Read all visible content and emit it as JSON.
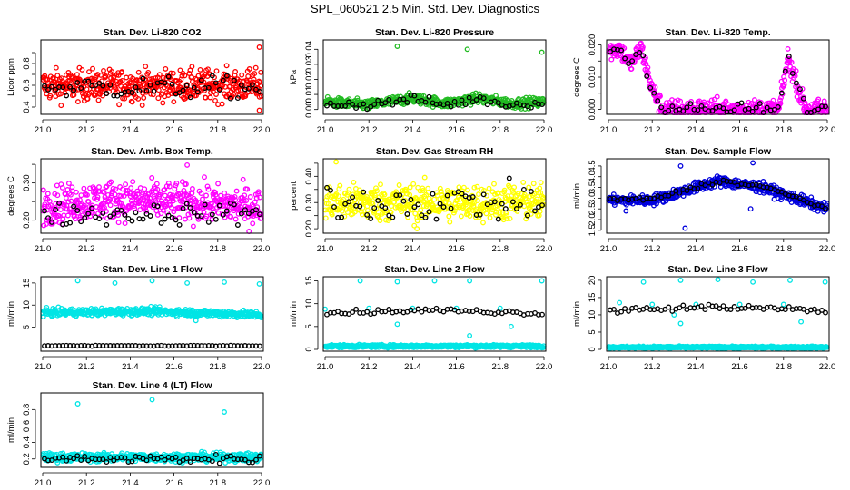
{
  "title": "SPL_060521  2.5 Min. Std. Dev. Diagnostics",
  "x_tick_labels": [
    "21.0",
    "21.2",
    "21.4",
    "21.6",
    "21.8",
    "22.0"
  ],
  "colors": {
    "red": "#ff0000",
    "green": "#22bb22",
    "magenta": "#ff00ff",
    "yellow": "#ffff00",
    "blue": "#0000dd",
    "cyan": "#00e5e5",
    "black": "#000000"
  },
  "chart_data": [
    {
      "type": "scatter",
      "title": "Stan. Dev. Li-820 CO2",
      "ylabel": "Licor ppm",
      "color": "red",
      "xlim": [
        21.0,
        22.0
      ],
      "ylim": [
        0.35,
        1.0
      ],
      "yticks": [
        0.4,
        0.5,
        0.6,
        0.7,
        0.8,
        0.9
      ],
      "yticklabels": [
        "0.4",
        "",
        "0.6",
        "",
        "0.8",
        ""
      ],
      "baseline": [
        [
          21.0,
          0.6
        ],
        [
          22.0,
          0.6
        ]
      ],
      "spread": 0.07,
      "n": 480,
      "black_baseline": [
        [
          21.0,
          0.58
        ],
        [
          22.0,
          0.58
        ]
      ],
      "black_spread": 0.05,
      "extra_points": [
        [
          21.99,
          0.95
        ],
        [
          21.99,
          0.37
        ]
      ]
    },
    {
      "type": "scatter",
      "title": "Stan. Dev. Li-820 Pressure",
      "ylabel": "kPa",
      "color": "green",
      "xlim": [
        21.0,
        22.0
      ],
      "ylim": [
        -0.002,
        0.045
      ],
      "yticks": [
        0.0,
        0.01,
        0.02,
        0.03,
        0.04
      ],
      "yticklabels": [
        "0.00",
        "0.01",
        "0.02",
        "0.03",
        "0.04"
      ],
      "baseline": [
        [
          21.0,
          0.005
        ],
        [
          21.2,
          0.003
        ],
        [
          21.4,
          0.0075
        ],
        [
          21.55,
          0.004
        ],
        [
          21.7,
          0.0075
        ],
        [
          21.85,
          0.004
        ],
        [
          22.0,
          0.005
        ]
      ],
      "spread": 0.0016,
      "n": 480,
      "black_baseline": [
        [
          21.0,
          0.004
        ],
        [
          21.2,
          0.003
        ],
        [
          21.4,
          0.007
        ],
        [
          21.55,
          0.003
        ],
        [
          21.7,
          0.007
        ],
        [
          21.85,
          0.003
        ],
        [
          22.0,
          0.005
        ]
      ],
      "black_spread": 0.0015,
      "extra_points": [
        [
          21.33,
          0.042
        ],
        [
          21.65,
          0.04
        ],
        [
          21.99,
          0.038
        ]
      ]
    },
    {
      "type": "scatter",
      "title": "Stan. Dev. Li-820 Temp.",
      "ylabel": "degrees C",
      "color": "magenta",
      "xlim": [
        21.0,
        22.0
      ],
      "ylim": [
        -0.001,
        0.021
      ],
      "yticks": [
        0.0,
        0.005,
        0.01,
        0.015,
        0.02
      ],
      "yticklabels": [
        "0.000",
        "",
        "0.010",
        "",
        "0.020"
      ],
      "baseline": [
        [
          21.0,
          0.018
        ],
        [
          21.05,
          0.019
        ],
        [
          21.1,
          0.014
        ],
        [
          21.15,
          0.019
        ],
        [
          21.2,
          0.006
        ],
        [
          21.25,
          0.0
        ],
        [
          21.78,
          0.0
        ],
        [
          21.82,
          0.016
        ],
        [
          21.88,
          0.004
        ],
        [
          21.9,
          0.0
        ],
        [
          22.0,
          0.0
        ]
      ],
      "spread": 0.0015,
      "n": 480,
      "black_baseline": [
        [
          21.0,
          0.018
        ],
        [
          21.05,
          0.019
        ],
        [
          21.1,
          0.014
        ],
        [
          21.15,
          0.019
        ],
        [
          21.2,
          0.006
        ],
        [
          21.25,
          0.0
        ],
        [
          21.78,
          0.0
        ],
        [
          21.82,
          0.016
        ],
        [
          21.88,
          0.004
        ],
        [
          21.9,
          0.0
        ],
        [
          22.0,
          0.0
        ]
      ],
      "black_spread": 0.001,
      "extra_points": []
    },
    {
      "type": "scatter",
      "title": "Stan. Dev. Amb. Box Temp.",
      "ylabel": "degrees C",
      "color": "magenta",
      "xlim": [
        21.0,
        22.0
      ],
      "ylim": [
        0.17,
        0.36
      ],
      "yticks": [
        0.2,
        0.25,
        0.3,
        0.35
      ],
      "yticklabels": [
        "0.20",
        "",
        "0.30",
        ""
      ],
      "baseline": [
        [
          21.0,
          0.24
        ],
        [
          21.3,
          0.255
        ],
        [
          21.6,
          0.25
        ],
        [
          22.0,
          0.235
        ]
      ],
      "spread": 0.025,
      "n": 480,
      "black_baseline": [
        [
          21.0,
          0.215
        ],
        [
          22.0,
          0.22
        ]
      ],
      "black_spread": 0.015,
      "extra_points": [
        [
          21.66,
          0.348
        ]
      ]
    },
    {
      "type": "scatter",
      "title": "Stan. Dev. Gas Stream RH",
      "ylabel": "percent",
      "color": "yellow",
      "xlim": [
        21.0,
        22.0
      ],
      "ylim": [
        0.19,
        0.46
      ],
      "yticks": [
        0.2,
        0.25,
        0.3,
        0.35,
        0.4,
        0.45
      ],
      "yticklabels": [
        "0.20",
        "",
        "0.30",
        "",
        "0.40",
        ""
      ],
      "baseline": [
        [
          21.0,
          0.3
        ],
        [
          22.0,
          0.3
        ]
      ],
      "spread": 0.035,
      "n": 480,
      "black_baseline": [
        [
          21.0,
          0.3
        ],
        [
          22.0,
          0.3
        ]
      ],
      "black_spread": 0.035,
      "extra_points": [
        [
          21.05,
          0.455
        ],
        [
          21.42,
          0.2
        ]
      ]
    },
    {
      "type": "scatter",
      "title": "Stan. Dev. Sample Flow",
      "ylabel": "ml/min",
      "color": "blue",
      "xlim": [
        21.0,
        22.0
      ],
      "ylim": [
        1.45,
        4.75
      ],
      "yticks": [
        1.5,
        2.0,
        2.5,
        3.0,
        3.5,
        4.0,
        4.5
      ],
      "yticklabels": [
        "1.5",
        "2.0",
        "2.5",
        "3.0",
        "3.5",
        "4.0",
        "4.5"
      ],
      "baseline": [
        [
          21.0,
          2.9
        ],
        [
          21.2,
          2.9
        ],
        [
          21.5,
          3.8
        ],
        [
          21.7,
          3.5
        ],
        [
          21.85,
          3.0
        ],
        [
          22.0,
          2.5
        ]
      ],
      "spread": 0.12,
      "n": 480,
      "black_baseline": [
        [
          21.0,
          2.95
        ],
        [
          21.2,
          2.95
        ],
        [
          21.5,
          3.8
        ],
        [
          21.7,
          3.55
        ],
        [
          21.85,
          3.05
        ],
        [
          22.0,
          2.5
        ]
      ],
      "black_spread": 0.05,
      "extra_points": [
        [
          21.33,
          4.5
        ],
        [
          21.66,
          4.65
        ],
        [
          21.35,
          1.6
        ],
        [
          21.08,
          2.4
        ],
        [
          21.65,
          2.5
        ]
      ]
    },
    {
      "type": "scatter",
      "title": "Stan. Dev. Line 1 Flow",
      "ylabel": "ml/min",
      "color": "cyan",
      "xlim": [
        21.0,
        22.0
      ],
      "ylim": [
        0.0,
        16.0
      ],
      "yticks": [
        5,
        10,
        15
      ],
      "yticklabels": [
        "5",
        "10",
        "15"
      ],
      "baseline": [
        [
          21.0,
          8.3
        ],
        [
          21.5,
          8.6
        ],
        [
          22.0,
          7.8
        ]
      ],
      "spread": 0.4,
      "n": 480,
      "black_baseline": [
        [
          21.0,
          0.8
        ],
        [
          22.0,
          0.8
        ]
      ],
      "black_spread": 0.05,
      "extra_points": [
        [
          21.16,
          15.5
        ],
        [
          21.33,
          15.0
        ],
        [
          21.5,
          15.5
        ],
        [
          21.66,
          15.0
        ],
        [
          21.83,
          15.2
        ],
        [
          21.99,
          14.8
        ],
        [
          21.7,
          6.5
        ]
      ]
    },
    {
      "type": "scatter",
      "title": "Stan. Dev. Line 2 Flow",
      "ylabel": "ml/min",
      "color": "cyan",
      "xlim": [
        21.0,
        22.0
      ],
      "ylim": [
        0.0,
        15.5
      ],
      "yticks": [
        0,
        5,
        10,
        15
      ],
      "yticklabels": [
        "0",
        "5",
        "10",
        "15"
      ],
      "baseline": [
        [
          21.0,
          0.7
        ],
        [
          22.0,
          0.7
        ]
      ],
      "spread": 0.15,
      "n": 480,
      "black_baseline": [
        [
          21.0,
          8.0
        ],
        [
          21.5,
          8.6
        ],
        [
          22.0,
          7.9
        ]
      ],
      "black_spread": 0.25,
      "extra_points": [
        [
          21.16,
          15.0
        ],
        [
          21.33,
          14.8
        ],
        [
          21.5,
          15.0
        ],
        [
          21.66,
          15.0
        ],
        [
          21.99,
          15.0
        ],
        [
          21.0,
          8.8
        ],
        [
          21.2,
          9.0
        ],
        [
          21.4,
          9.0
        ],
        [
          21.6,
          9.0
        ],
        [
          21.8,
          9.0
        ],
        [
          21.33,
          5.5
        ],
        [
          21.66,
          3.0
        ],
        [
          21.85,
          5.0
        ]
      ]
    },
    {
      "type": "scatter",
      "title": "Stan. Dev. Line 3 Flow",
      "ylabel": "ml/min",
      "color": "cyan",
      "xlim": [
        21.0,
        22.0
      ],
      "ylim": [
        0.0,
        20.5
      ],
      "yticks": [
        0,
        5,
        10,
        15,
        20
      ],
      "yticklabels": [
        "0",
        "5",
        "10",
        "15",
        "20"
      ],
      "baseline": [
        [
          21.0,
          0.6
        ],
        [
          22.0,
          0.6
        ]
      ],
      "spread": 0.15,
      "n": 480,
      "black_baseline": [
        [
          21.0,
          11.2
        ],
        [
          21.5,
          12.3
        ],
        [
          22.0,
          11.2
        ]
      ],
      "black_spread": 0.4,
      "extra_points": [
        [
          21.16,
          19.5
        ],
        [
          21.33,
          20.0
        ],
        [
          21.5,
          20.2
        ],
        [
          21.66,
          19.5
        ],
        [
          21.83,
          20.0
        ],
        [
          21.99,
          19.5
        ],
        [
          21.05,
          13.5
        ],
        [
          21.2,
          13.0
        ],
        [
          21.4,
          13.0
        ],
        [
          21.6,
          13.0
        ],
        [
          21.8,
          13.0
        ],
        [
          21.33,
          7.5
        ],
        [
          21.88,
          8.0
        ],
        [
          21.3,
          10.0
        ]
      ]
    },
    {
      "type": "scatter",
      "title": "Stan. Dev. Line 4 (LT) Flow",
      "ylabel": "ml/min",
      "color": "cyan",
      "xlim": [
        21.0,
        22.0
      ],
      "ylim": [
        0.12,
        0.98
      ],
      "yticks": [
        0.2,
        0.4,
        0.6,
        0.8
      ],
      "yticklabels": [
        "0.2",
        "0.4",
        "0.6",
        "0.8"
      ],
      "baseline": [
        [
          21.0,
          0.22
        ],
        [
          22.0,
          0.22
        ]
      ],
      "spread": 0.025,
      "n": 480,
      "black_baseline": [
        [
          21.0,
          0.2
        ],
        [
          22.0,
          0.2
        ]
      ],
      "black_spread": 0.025,
      "extra_points": [
        [
          21.16,
          0.87
        ],
        [
          21.5,
          0.92
        ],
        [
          21.83,
          0.77
        ]
      ]
    }
  ]
}
